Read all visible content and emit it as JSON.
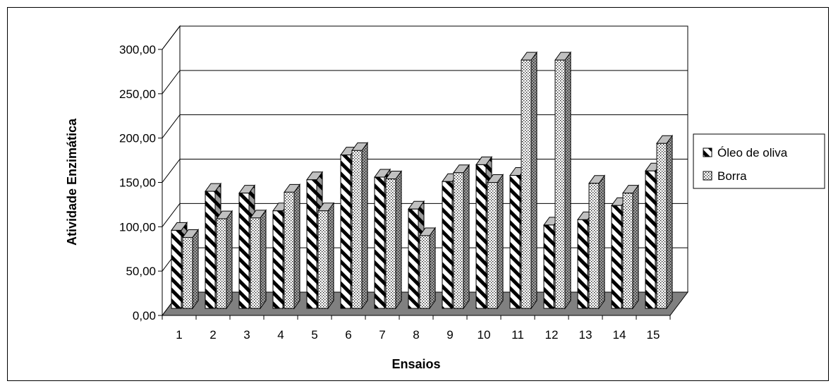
{
  "chart_data": {
    "type": "bar",
    "title": "",
    "xlabel": "Ensaios",
    "ylabel": "Atividade Enzimática",
    "ylim": [
      0,
      300
    ],
    "yticks": [
      "0,00",
      "50,00",
      "100,00",
      "150,00",
      "200,00",
      "250,00",
      "300,00"
    ],
    "categories": [
      "1",
      "2",
      "3",
      "4",
      "5",
      "6",
      "7",
      "8",
      "9",
      "10",
      "11",
      "12",
      "13",
      "14",
      "15"
    ],
    "grid": true,
    "legend_position": "right",
    "series": [
      {
        "name": "Óleo de oliva",
        "pattern": "diagonal-stripes",
        "values": [
          88,
          132,
          130,
          110,
          145,
          173,
          148,
          112,
          143,
          162,
          150,
          94,
          100,
          116,
          155
        ]
      },
      {
        "name": "Borra",
        "pattern": "dotted",
        "values": [
          80,
          101,
          102,
          131,
          110,
          178,
          146,
          82,
          153,
          142,
          280,
          280,
          141,
          130,
          186
        ]
      }
    ],
    "colors": {
      "wall": "#ffffff",
      "floor": "#808080",
      "side_face": "#9a9a9a",
      "top_face": "#c0c0c0"
    }
  }
}
